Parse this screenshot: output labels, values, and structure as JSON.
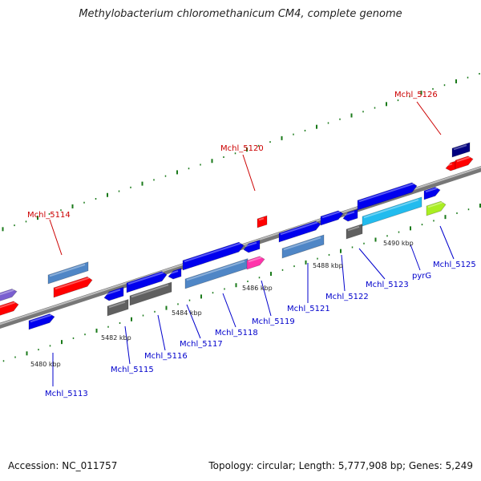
{
  "title": "Methylobacterium chloromethanicum CM4, complete genome",
  "footer": {
    "accession": "Accession: NC_011757",
    "summary": "Topology: circular; Length: 5,777,908 bp; Genes: 5,249"
  },
  "colors": {
    "backbone": "#8a8a8a",
    "label_forward": "#cc0000",
    "label_reverse": "#0000cc",
    "tick": "#1a7a1a"
  },
  "scale_labels": [
    "5480 kbp",
    "5482 kbp",
    "5484 kbp",
    "5486 kbp",
    "5488 kbp",
    "5490 kbp"
  ],
  "genes": [
    {
      "name": "Mchl_5113",
      "strand": "reverse"
    },
    {
      "name": "Mchl_5114",
      "strand": "forward"
    },
    {
      "name": "Mchl_5115",
      "strand": "reverse"
    },
    {
      "name": "Mchl_5116",
      "strand": "reverse"
    },
    {
      "name": "Mchl_5117",
      "strand": "reverse"
    },
    {
      "name": "Mchl_5118",
      "strand": "reverse"
    },
    {
      "name": "Mchl_5119",
      "strand": "reverse"
    },
    {
      "name": "Mchl_5120",
      "strand": "forward"
    },
    {
      "name": "Mchl_5121",
      "strand": "reverse"
    },
    {
      "name": "Mchl_5122",
      "strand": "reverse"
    },
    {
      "name": "Mchl_5123",
      "strand": "reverse"
    },
    {
      "name": "pyrG",
      "strand": "reverse"
    },
    {
      "name": "Mchl_5125",
      "strand": "reverse"
    },
    {
      "name": "Mchl_5126",
      "strand": "forward"
    }
  ]
}
